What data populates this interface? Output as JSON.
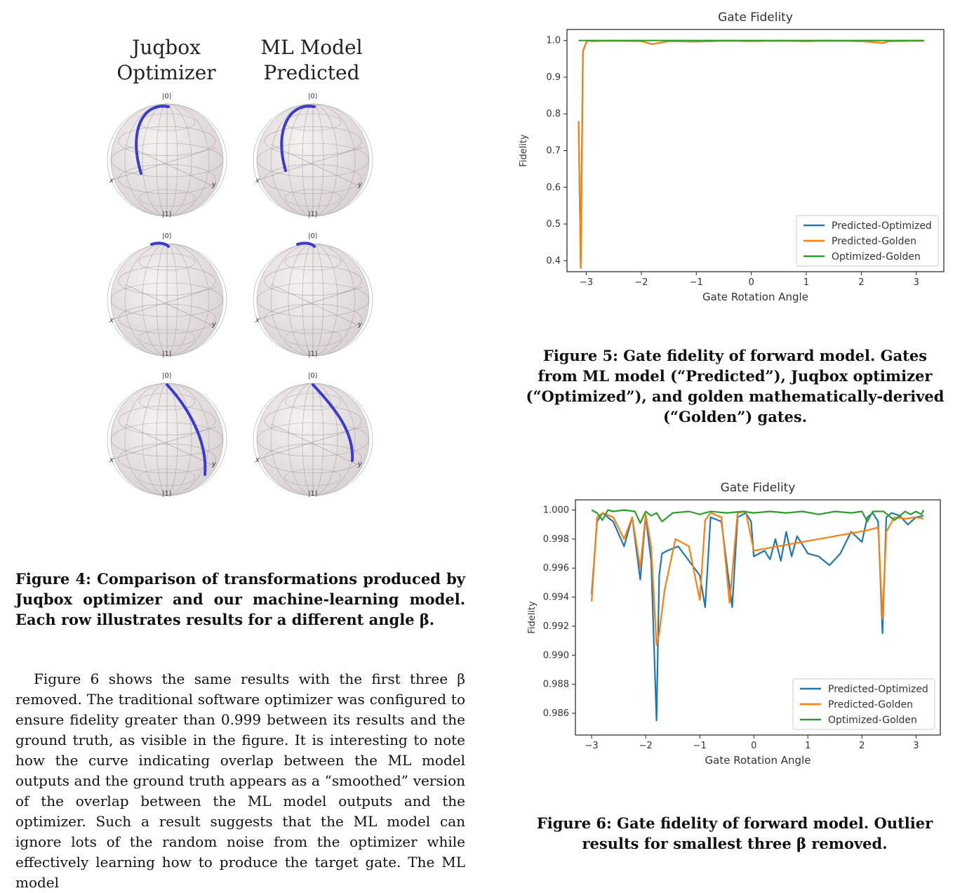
{
  "figure4": {
    "col_left_title": [
      "Juqbox",
      "Optimizer"
    ],
    "col_right_title": [
      "ML Model",
      "Predicted"
    ],
    "ket_top": "|0⟩",
    "ket_bottom": "|1⟩",
    "axis_x": "x",
    "axis_y": "y",
    "caption": "Figure 4: Comparison of transformations produced by Juqbox optimizer and our machine-learning model. Each row illustrates results for a different angle β.",
    "trace_color": "#3b3bd0"
  },
  "body_paragraph": "Figure 6 shows the same results with the first three β removed. The traditional software optimizer was configured to ensure fidelity greater than 0.999 between its results and the ground truth, as visible in the figure. It is interesting to note how the curve indicating overlap between the ML model outputs and the ground truth appears as a “smoothed” version of the overlap between the ML model outputs and the optimizer. Such a result suggests that the ML model can ignore lots of the random noise from the optimizer while effectively learning how to produce the target gate. The ML model",
  "figure5": {
    "caption": "Figure 5: Gate fidelity of forward model. Gates from ML model (“Predicted”), Juqbox optimizer (“Optimized”), and golden mathematically-derived (“Golden”) gates."
  },
  "figure6": {
    "caption": "Figure 6: Gate fidelity of forward model. Outlier results for smallest three β removed."
  },
  "chart_data": [
    {
      "type": "line",
      "title": "Gate Fidelity",
      "xlabel": "Gate Rotation Angle",
      "ylabel": "Fidelity",
      "xlim": [
        -3.35,
        3.5
      ],
      "ylim": [
        0.37,
        1.03
      ],
      "xticks": [
        -3,
        -2,
        -1,
        0,
        1,
        2,
        3
      ],
      "xtick_labels": [
        "−3",
        "−2",
        "−1",
        "0",
        "1",
        "2",
        "3"
      ],
      "yticks": [
        0.4,
        0.5,
        0.6,
        0.7,
        0.8,
        0.9,
        1.0
      ],
      "ytick_labels": [
        "0.4",
        "0.5",
        "0.6",
        "0.7",
        "0.8",
        "0.9",
        "1.0"
      ],
      "legend_position": "lower-right",
      "series": [
        {
          "name": "Predicted-Optimized",
          "color": "#1f77b4",
          "x": [
            -3.14,
            -3.1,
            -3.06,
            -3.0,
            -2.95,
            -2.9,
            -2.5,
            -2.0,
            -1.8,
            -1.5,
            -1.0,
            -0.5,
            0.0,
            0.5,
            1.0,
            1.5,
            2.0,
            2.4,
            2.5,
            3.14
          ],
          "y": [
            0.78,
            0.38,
            0.97,
            0.995,
            1.0,
            0.998,
            0.999,
            0.998,
            0.99,
            0.998,
            0.997,
            0.999,
            0.998,
            0.999,
            0.998,
            0.999,
            0.998,
            0.993,
            0.998,
            0.999
          ]
        },
        {
          "name": "Predicted-Golden",
          "color": "#ff7f0e",
          "x": [
            -3.14,
            -3.1,
            -3.06,
            -3.0,
            -2.95,
            -2.9,
            -2.5,
            -2.0,
            -1.8,
            -1.5,
            -1.0,
            -0.5,
            0.0,
            0.5,
            1.0,
            1.5,
            2.0,
            2.4,
            2.5,
            3.14
          ],
          "y": [
            0.78,
            0.38,
            0.97,
            0.995,
            1.0,
            0.998,
            0.999,
            0.998,
            0.99,
            0.998,
            0.997,
            0.999,
            0.998,
            0.999,
            0.998,
            0.999,
            0.998,
            0.993,
            0.998,
            0.999
          ]
        },
        {
          "name": "Optimized-Golden",
          "color": "#2ca02c",
          "x": [
            -3.14,
            -2.0,
            -1.0,
            0.0,
            1.0,
            2.0,
            3.14
          ],
          "y": [
            1.0,
            1.0,
            1.0,
            1.0,
            1.0,
            1.0,
            1.0
          ]
        }
      ]
    },
    {
      "type": "line",
      "title": "Gate Fidelity",
      "xlabel": "Gate Rotation Angle",
      "ylabel": "Fidelity",
      "xlim": [
        -3.3,
        3.45
      ],
      "ylim": [
        0.9845,
        1.0007
      ],
      "xticks": [
        -3,
        -2,
        -1,
        0,
        1,
        2,
        3
      ],
      "xtick_labels": [
        "−3",
        "−2",
        "−1",
        "0",
        "1",
        "2",
        "3"
      ],
      "yticks": [
        0.986,
        0.988,
        0.99,
        0.992,
        0.994,
        0.996,
        0.998,
        1.0
      ],
      "ytick_labels": [
        "0.986",
        "0.988",
        "0.990",
        "0.992",
        "0.994",
        "0.996",
        "0.998",
        "1.000"
      ],
      "legend_position": "lower-right",
      "series": [
        {
          "name": "Predicted-Optimized",
          "color": "#1f77b4",
          "x": [
            -3.0,
            -2.9,
            -2.8,
            -2.6,
            -2.4,
            -2.25,
            -2.1,
            -2.0,
            -1.9,
            -1.8,
            -1.75,
            -1.7,
            -1.6,
            -1.4,
            -1.2,
            -1.0,
            -0.9,
            -0.8,
            -0.6,
            -0.4,
            -0.3,
            -0.15,
            -0.05,
            0.0,
            0.1,
            0.2,
            0.3,
            0.4,
            0.5,
            0.6,
            0.7,
            0.8,
            1.0,
            1.2,
            1.4,
            1.6,
            1.8,
            2.0,
            2.1,
            2.2,
            2.3,
            2.38,
            2.45,
            2.55,
            2.7,
            2.85,
            3.0,
            3.14
          ],
          "y": [
            0.9942,
            0.9992,
            0.9998,
            0.9992,
            0.9975,
            0.9995,
            0.9952,
            0.9996,
            0.9965,
            0.9855,
            0.9955,
            0.997,
            0.9972,
            0.9975,
            0.9965,
            0.9955,
            0.9933,
            0.9995,
            0.9992,
            0.9933,
            0.9995,
            0.9998,
            0.9992,
            0.9968,
            0.997,
            0.9972,
            0.9966,
            0.998,
            0.9965,
            0.9985,
            0.9968,
            0.9982,
            0.997,
            0.9968,
            0.9962,
            0.997,
            0.9985,
            0.9978,
            0.9995,
            0.9998,
            0.9992,
            0.9915,
            0.9995,
            0.9998,
            0.9996,
            0.999,
            0.9995,
            0.9996
          ]
        },
        {
          "name": "Predicted-Golden",
          "color": "#ff7f0e",
          "x": [
            -3.0,
            -2.9,
            -2.8,
            -2.6,
            -2.4,
            -2.25,
            -2.1,
            -2.0,
            -1.9,
            -1.8,
            -1.75,
            -1.65,
            -1.45,
            -1.2,
            -1.0,
            -0.9,
            -0.8,
            -0.6,
            -0.45,
            -0.3,
            -0.15,
            0.0,
            0.3,
            0.6,
            0.9,
            1.2,
            1.5,
            1.8,
            2.1,
            2.3,
            2.38,
            2.45,
            2.6,
            2.8,
            3.0,
            3.14
          ],
          "y": [
            0.9937,
            0.9995,
            0.9998,
            0.9995,
            0.998,
            0.9995,
            0.996,
            0.9997,
            0.9975,
            0.9907,
            0.9915,
            0.9945,
            0.998,
            0.9975,
            0.9938,
            0.9993,
            0.9998,
            0.9995,
            0.9936,
            0.9998,
            0.9999,
            0.9972,
            0.9974,
            0.9976,
            0.9978,
            0.998,
            0.9982,
            0.9984,
            0.9986,
            0.9988,
            0.9925,
            0.9985,
            0.9995,
            0.9994,
            0.9995,
            0.9994
          ]
        },
        {
          "name": "Optimized-Golden",
          "color": "#2ca02c",
          "x": [
            -3.0,
            -2.9,
            -2.8,
            -2.7,
            -2.6,
            -2.4,
            -2.2,
            -2.1,
            -2.0,
            -1.9,
            -1.8,
            -1.7,
            -1.5,
            -1.2,
            -1.0,
            -0.8,
            -0.5,
            -0.2,
            0.0,
            0.3,
            0.6,
            0.9,
            1.2,
            1.5,
            1.8,
            2.0,
            2.1,
            2.2,
            2.4,
            2.6,
            2.8,
            2.9,
            3.0,
            3.1,
            3.14
          ],
          "y": [
            1.0,
            0.9998,
            0.9993,
            1.0,
            0.9999,
            1.0,
            0.9999,
            0.9991,
            0.9999,
            0.9996,
            0.9998,
            0.9992,
            0.9998,
            0.9999,
            0.9997,
            0.9999,
            0.9998,
            0.9999,
            0.9998,
            0.9999,
            0.9998,
            0.9999,
            0.9997,
            0.9999,
            0.9998,
            0.9999,
            0.9992,
            0.9999,
            0.9999,
            0.9993,
            0.9999,
            0.9997,
            0.9999,
            0.9997,
            1.0
          ]
        }
      ]
    }
  ]
}
